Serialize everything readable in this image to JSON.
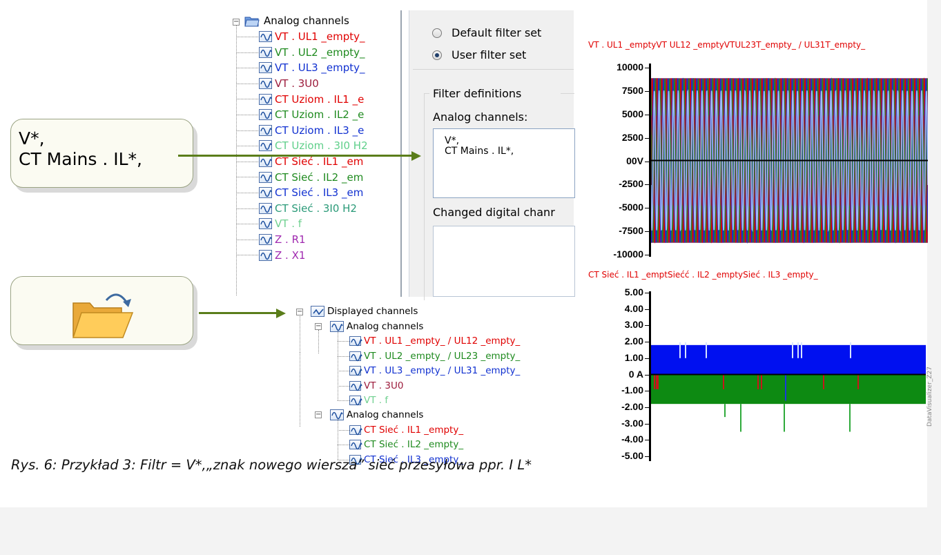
{
  "tree_top": {
    "root_label": "Analog channels",
    "items": [
      {
        "label": "VT . UL1 _empty_",
        "color": "#e00000"
      },
      {
        "label": "VT . UL2 _empty_",
        "color": "#1e8a1e"
      },
      {
        "label": "VT . UL3 _empty_",
        "color": "#1030d0"
      },
      {
        "label": "VT . 3U0",
        "color": "#9c1b3b"
      },
      {
        "label": "CT Uziom . IL1 _e",
        "color": "#e00000"
      },
      {
        "label": "CT Uziom . IL2 _e",
        "color": "#1e8a1e"
      },
      {
        "label": "CT Uziom . IL3 _e",
        "color": "#1030d0"
      },
      {
        "label": "CT Uziom . 3I0 H2",
        "color": "#5fcf8a"
      },
      {
        "label": "CT Sieć . IL1 _em",
        "color": "#e00000"
      },
      {
        "label": "CT Sieć . IL2 _em",
        "color": "#1e8a1e"
      },
      {
        "label": "CT Sieć . IL3 _em",
        "color": "#1030d0"
      },
      {
        "label": "CT Sieć . 3I0 H2",
        "color": "#2a9a78"
      },
      {
        "label": "VT . f",
        "color": "#6fd08f"
      },
      {
        "label": "Z . R1",
        "color": "#a02ab0"
      },
      {
        "label": "Z . X1",
        "color": "#a02ab0"
      }
    ]
  },
  "filter_panel": {
    "default_filter": "Default filter set",
    "user_filter": "User filter set",
    "filter_definitions": "Filter definitions",
    "analog_label": "Analog channels:",
    "analog_value_line1": "V*,",
    "analog_value_line2": "CT Mains . IL*,",
    "digital_label": "Changed digital chanr"
  },
  "callout_filter": {
    "line1": "V*,",
    "line2": "CT Mains . IL*,"
  },
  "callout_icon": "open-folder-icon",
  "tree_bottom": {
    "root_label": "Displayed channels",
    "groups": [
      {
        "label": "Analog channels",
        "items": [
          {
            "label": "VT . UL1 _empty_ / UL12 _empty_",
            "color": "#e00000"
          },
          {
            "label": "VT . UL2 _empty_ / UL23 _empty_",
            "color": "#1e8a1e"
          },
          {
            "label": "VT . UL3 _empty_ / UL31 _empty_",
            "color": "#1030d0"
          },
          {
            "label": "VT . 3U0",
            "color": "#9c1b3b"
          },
          {
            "label": "VT . f",
            "color": "#6fd08f"
          }
        ]
      },
      {
        "label": "Analog channels",
        "items": [
          {
            "label": "CT Sieć . IL1 _empty_",
            "color": "#e00000"
          },
          {
            "label": "CT Sieć . IL2 _empty_",
            "color": "#1e8a1e"
          },
          {
            "label": "CT Sieć . IL3 _empty_",
            "color": "#1030d0"
          }
        ]
      }
    ]
  },
  "chart_data": [
    {
      "type": "line",
      "legend_text": "VT . UL1 _emptyVT UL12 _emptyVTUL23T_empty_ / UL31T_empty_",
      "series": [
        {
          "name": "VT . UL1 _empty_ / UL12 _empty_",
          "color": "#e00000"
        },
        {
          "name": "VT . UL2 _empty_ / UL23 _empty_",
          "color": "#1e8a1e"
        },
        {
          "name": "VT . UL3 _empty_ / UL31 _empty_",
          "color": "#1030d0"
        },
        {
          "name": "VT . 3U0",
          "color": "#9c1b3b"
        },
        {
          "name": "VT . f",
          "color": "#6fd08f"
        }
      ],
      "yticks": [
        "10000",
        "7500",
        "5000",
        "2500",
        "00V",
        "-2500",
        "-5000",
        "-7500",
        "-10000"
      ],
      "ylim": [
        -10000,
        10000
      ],
      "amplitude": 8800,
      "cycles": 58
    },
    {
      "type": "area",
      "legend_text": "CT Sieć . IL1 _emptSiećć . IL2 _emptySieć . IL3 _empty_",
      "series": [
        {
          "name": "CT Sieć . IL1 _empty_",
          "color": "#e00000"
        },
        {
          "name": "CT Sieć . IL2 _empty_",
          "color": "#1e8a1e"
        },
        {
          "name": "CT Sieć . IL3 _empty_",
          "color": "#1030d0"
        }
      ],
      "yticks": [
        "5.00",
        "4.00",
        "3.00",
        "2.00",
        "1.00",
        "0 A",
        "-1.00",
        "-2.00",
        "-3.00",
        "-4.00",
        "-5.00"
      ],
      "ylim": [
        -5,
        5
      ],
      "band_top": 1.8,
      "band_bottom": -1.8
    }
  ],
  "caption": "Rys. 6: Przykład 3: Filtr = V*,„znak nowego wiersza” sieć przesyłowa ppr. I L*",
  "side_label": "DataVisualizer_Z27"
}
